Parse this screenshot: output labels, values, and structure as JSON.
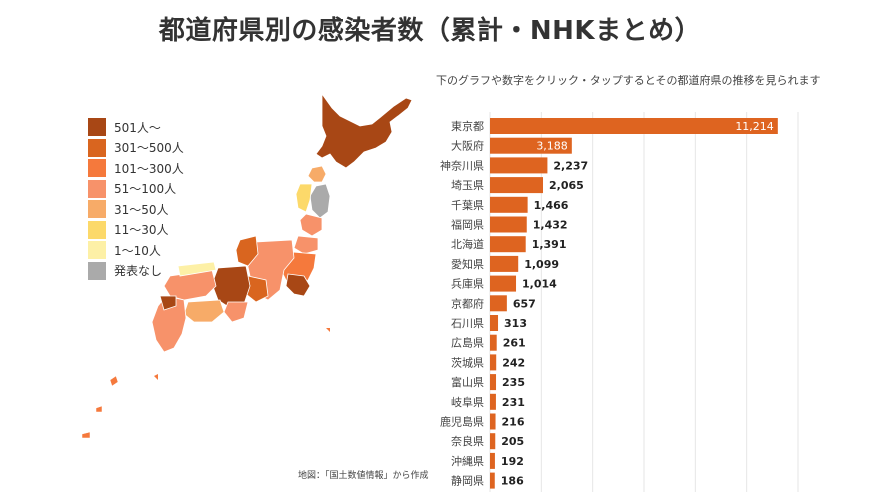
{
  "title": "都道府県別の感染者数（累計・NHKまとめ）",
  "instruction": "下のグラフや数字をクリック・タップするとその都道府県の推移を見られます",
  "map_credit": "地図：「国土数値情報」から作成",
  "colors": {
    "bar": "#de6420",
    "grid": "#e6e6e6",
    "level_501_plus": "#a84715",
    "level_301_500": "#d9651f",
    "level_101_300": "#f5793c",
    "level_51_100": "#f7926a",
    "level_31_50": "#f7ab68",
    "level_11_30": "#fcd96a",
    "level_1_10": "#fdf0a6",
    "level_none": "#aaaaaa"
  },
  "legend": [
    {
      "label": "501人〜",
      "color": "#a84715"
    },
    {
      "label": "301〜500人",
      "color": "#d9651f"
    },
    {
      "label": "101〜300人",
      "color": "#f5793c"
    },
    {
      "label": "51〜100人",
      "color": "#f7926a"
    },
    {
      "label": "31〜50人",
      "color": "#f7ab68"
    },
    {
      "label": "11〜30人",
      "color": "#fcd96a"
    },
    {
      "label": "1〜10人",
      "color": "#fdf0a6"
    },
    {
      "label": "発表なし",
      "color": "#aaaaaa"
    }
  ],
  "chart_data": {
    "type": "bar",
    "orientation": "horizontal",
    "categories": [
      "東京都",
      "大阪府",
      "神奈川県",
      "埼玉県",
      "千葉県",
      "福岡県",
      "北海道",
      "愛知県",
      "兵庫県",
      "京都府",
      "石川県",
      "広島県",
      "茨城県",
      "富山県",
      "岐阜県",
      "鹿児島県",
      "奈良県",
      "沖縄県",
      "静岡県"
    ],
    "values": [
      11214,
      3188,
      2237,
      2065,
      1466,
      1432,
      1391,
      1099,
      1014,
      657,
      313,
      261,
      242,
      235,
      231,
      216,
      205,
      192,
      186
    ],
    "value_labels": [
      "11,214",
      "3,188",
      "2,237",
      "2,065",
      "1,466",
      "1,432",
      "1,391",
      "1,099",
      "1,014",
      "657",
      "313",
      "261",
      "242",
      "235",
      "231",
      "216",
      "205",
      "192",
      "186"
    ],
    "xlim": [
      0,
      12000
    ],
    "grid": true
  }
}
